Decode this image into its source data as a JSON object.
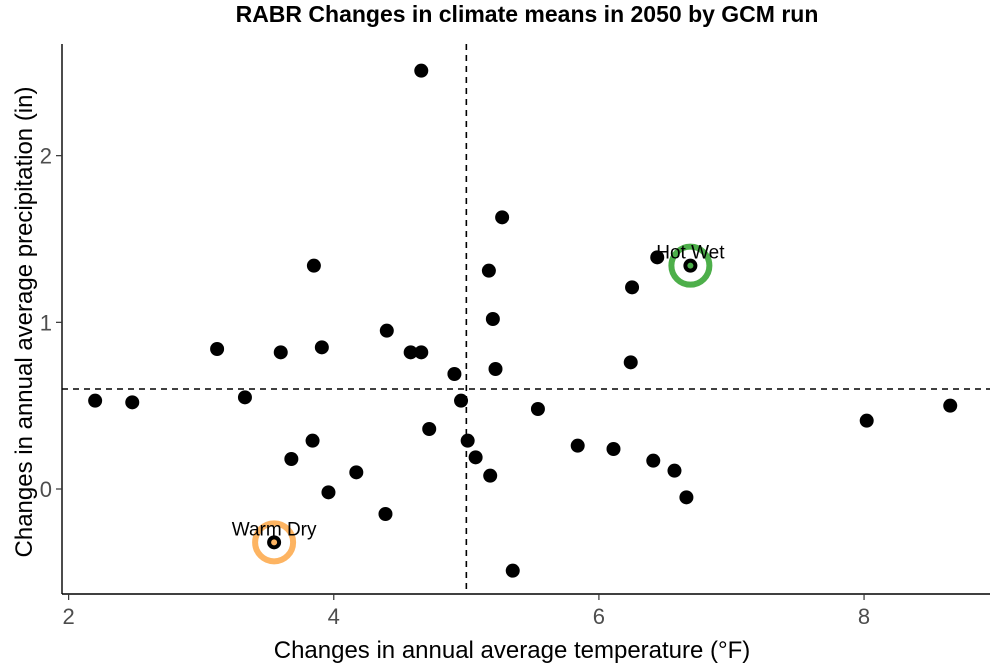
{
  "chart_data": {
    "type": "scatter",
    "title": "RABR Changes in climate means in 2050 by GCM run",
    "xlabel": "Changes in annual average temperature (°F)",
    "ylabel": "Changes in annual average precipitation (in)",
    "xlim": [
      1.95,
      8.95
    ],
    "ylim": [
      -0.63,
      2.67
    ],
    "xticks": [
      2,
      4,
      6,
      8
    ],
    "yticks": [
      0,
      1,
      2
    ],
    "xtick_labels": [
      "2",
      "4",
      "6",
      "8"
    ],
    "ytick_labels": [
      "0",
      "1",
      "2"
    ],
    "grid": false,
    "reference_lines": {
      "x": 5.0,
      "y": 0.6,
      "style": "dashed"
    },
    "points": [
      {
        "x": 2.2,
        "y": 0.53
      },
      {
        "x": 2.48,
        "y": 0.52
      },
      {
        "x": 3.12,
        "y": 0.84
      },
      {
        "x": 3.33,
        "y": 0.55
      },
      {
        "x": 3.6,
        "y": 0.82
      },
      {
        "x": 3.68,
        "y": 0.18
      },
      {
        "x": 3.84,
        "y": 0.29
      },
      {
        "x": 3.85,
        "y": 1.34
      },
      {
        "x": 3.91,
        "y": 0.85
      },
      {
        "x": 3.96,
        "y": -0.02
      },
      {
        "x": 4.17,
        "y": 0.1
      },
      {
        "x": 4.39,
        "y": -0.15
      },
      {
        "x": 4.4,
        "y": 0.95
      },
      {
        "x": 4.58,
        "y": 0.82
      },
      {
        "x": 4.66,
        "y": 0.82
      },
      {
        "x": 4.66,
        "y": 2.51
      },
      {
        "x": 4.72,
        "y": 0.36
      },
      {
        "x": 4.91,
        "y": 0.69
      },
      {
        "x": 4.96,
        "y": 0.53
      },
      {
        "x": 5.01,
        "y": 0.29
      },
      {
        "x": 5.07,
        "y": 0.19
      },
      {
        "x": 5.17,
        "y": 1.31
      },
      {
        "x": 5.18,
        "y": 0.08
      },
      {
        "x": 5.2,
        "y": 1.02
      },
      {
        "x": 5.22,
        "y": 0.72
      },
      {
        "x": 5.27,
        "y": 1.63
      },
      {
        "x": 5.35,
        "y": -0.49
      },
      {
        "x": 5.54,
        "y": 0.48
      },
      {
        "x": 5.84,
        "y": 0.26
      },
      {
        "x": 6.11,
        "y": 0.24
      },
      {
        "x": 6.24,
        "y": 0.76
      },
      {
        "x": 6.25,
        "y": 1.21
      },
      {
        "x": 6.41,
        "y": 0.17
      },
      {
        "x": 6.44,
        "y": 1.39
      },
      {
        "x": 6.57,
        "y": 0.11
      },
      {
        "x": 6.66,
        "y": -0.05
      },
      {
        "x": 6.69,
        "y": 1.34
      },
      {
        "x": 8.02,
        "y": 0.41
      },
      {
        "x": 8.65,
        "y": 0.5
      },
      {
        "x": 3.55,
        "y": -0.32
      }
    ],
    "highlights": [
      {
        "label": "Hot Wet",
        "x": 6.69,
        "y": 1.34,
        "color": "#4daf4a"
      },
      {
        "label": "Warm Dry",
        "x": 3.55,
        "y": -0.32,
        "color": "#fdb462"
      }
    ]
  }
}
